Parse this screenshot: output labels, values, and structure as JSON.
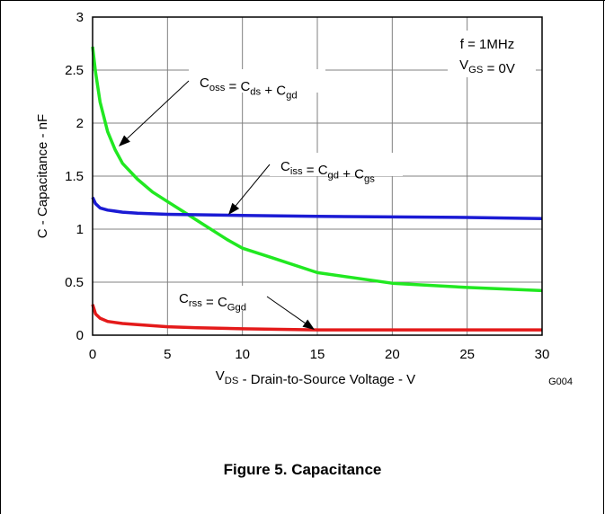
{
  "chart_data": {
    "type": "line",
    "x_range": [
      0,
      30
    ],
    "ylim": [
      0,
      3
    ],
    "x_ticks": [
      0,
      5,
      10,
      15,
      20,
      25,
      30
    ],
    "y_ticks": [
      0,
      0.5,
      1,
      1.5,
      2,
      2.5,
      3
    ],
    "y_tick_labels": [
      "0",
      "0.5",
      "1",
      "1.5",
      "2",
      "2.5",
      "3"
    ],
    "grid": true,
    "ylabel": "C - Capacitance - nF",
    "xlabel": {
      "main": "V",
      "sub": "DS",
      "rest": " - Drain-to-Source Voltage - V"
    },
    "graph_id": "G004",
    "conditions": [
      {
        "main": "f = 1MHz",
        "sub": "",
        "rest": ""
      },
      {
        "main": "V",
        "sub": "GS",
        "rest": " = 0V"
      }
    ],
    "series": [
      {
        "label": [
          [
            "C",
            "oss"
          ],
          [
            " = C",
            "ds"
          ],
          [
            " + C",
            "gd"
          ]
        ],
        "color": "#21e821",
        "x": [
          0,
          0.2,
          0.5,
          1,
          1.5,
          2,
          3,
          4,
          5,
          6,
          7,
          8,
          9,
          10,
          12,
          15,
          20,
          25,
          30
        ],
        "y": [
          2.72,
          2.48,
          2.2,
          1.92,
          1.75,
          1.62,
          1.47,
          1.35,
          1.26,
          1.17,
          1.08,
          0.99,
          0.9,
          0.82,
          0.73,
          0.59,
          0.49,
          0.45,
          0.42
        ]
      },
      {
        "label": [
          [
            "C",
            "iss"
          ],
          [
            " = C",
            "gd"
          ],
          [
            " + C",
            "gs"
          ]
        ],
        "color": "#1b1bd4",
        "x": [
          0,
          0.2,
          0.5,
          1,
          2,
          3,
          5,
          10,
          15,
          20,
          25,
          30
        ],
        "y": [
          1.3,
          1.24,
          1.2,
          1.18,
          1.16,
          1.15,
          1.14,
          1.13,
          1.12,
          1.115,
          1.11,
          1.1
        ]
      },
      {
        "label": [
          [
            "C",
            "rss"
          ],
          [
            " = C",
            "Ggd"
          ]
        ],
        "color": "#e41a1a",
        "x": [
          0,
          0.2,
          0.5,
          1,
          2,
          3,
          5,
          7,
          10,
          15,
          20,
          30
        ],
        "y": [
          0.29,
          0.2,
          0.16,
          0.13,
          0.11,
          0.1,
          0.08,
          0.07,
          0.06,
          0.05,
          0.05,
          0.05
        ]
      }
    ]
  },
  "caption": "Figure 5. Capacitance"
}
